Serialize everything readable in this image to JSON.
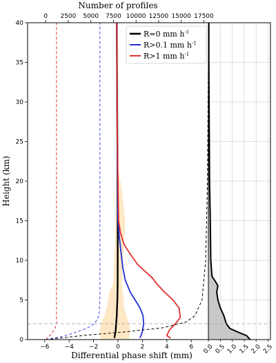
{
  "chart_data": [
    {
      "type": "line",
      "xlabel": "Differential phase shift (mm)",
      "ylabel": "Height (km)",
      "top_xlabel": "Number of profiles",
      "xlim": [
        -7.4,
        7.4
      ],
      "ylim": [
        0,
        40
      ],
      "x_ticks": [
        -6,
        -4,
        -2,
        0,
        2,
        4,
        6
      ],
      "y_ticks": [
        0,
        5,
        10,
        15,
        20,
        25,
        30,
        35,
        40
      ],
      "top_xlim": [
        -2000,
        18000
      ],
      "top_ticks": [
        0,
        2500,
        5000,
        7500,
        10000,
        12500,
        15000,
        17500
      ],
      "top_tick_labels": [
        "0",
        "2500",
        "5000",
        "7500",
        "10000",
        "12500",
        "15000",
        "17500"
      ],
      "reference_height_km": 2,
      "legend": {
        "placement": "top-right",
        "entries": [
          {
            "label": "R=0 mm h",
            "sup": "-1",
            "color": "#000000"
          },
          {
            "label": "R>0.1 mm h",
            "sup": "-1",
            "color": "#1f2fd6"
          },
          {
            "label": "R>1 mm h",
            "sup": "-1",
            "color": "#e03030"
          }
        ]
      },
      "spread_band": {
        "color": "#fde7c4",
        "points": [
          {
            "y": 0.0,
            "lo": -1.4,
            "hi": 0.9
          },
          {
            "y": 1.0,
            "lo": -1.5,
            "hi": 1.0
          },
          {
            "y": 2.0,
            "lo": -1.4,
            "hi": 0.9
          },
          {
            "y": 3.0,
            "lo": -1.1,
            "hi": 0.7
          },
          {
            "y": 4.0,
            "lo": -0.9,
            "hi": 0.5
          },
          {
            "y": 6.0,
            "lo": -0.7,
            "hi": 0.4
          },
          {
            "y": 7.0,
            "lo": -0.4,
            "hi": 0.3
          },
          {
            "y": 10.0,
            "lo": -0.3,
            "hi": 0.4
          },
          {
            "y": 15.0,
            "lo": -0.2,
            "hi": 0.6
          },
          {
            "y": 19.0,
            "lo": -0.2,
            "hi": 0.3
          },
          {
            "y": 21.0,
            "lo": -0.1,
            "hi": 0.1
          }
        ]
      },
      "series": [
        {
          "name": "R=0 mm h-1",
          "color": "#000000",
          "style": "solid",
          "axis": "bottom",
          "points": [
            [
              -0.3,
              0.2
            ],
            [
              -0.2,
              1.0
            ],
            [
              -0.15,
              2.0
            ],
            [
              -0.1,
              3.0
            ],
            [
              -0.08,
              4.0
            ],
            [
              -0.05,
              5.0
            ],
            [
              -0.03,
              7.0
            ],
            [
              -0.02,
              10.0
            ],
            [
              -0.02,
              15.0
            ],
            [
              -0.05,
              25.0
            ],
            [
              -0.1,
              40.0
            ]
          ]
        },
        {
          "name": "R>0.1 mm h-1",
          "color": "#1f2fd6",
          "style": "solid",
          "axis": "bottom",
          "points": [
            [
              1.8,
              0.2
            ],
            [
              2.0,
              1.0
            ],
            [
              2.1,
              2.0
            ],
            [
              2.05,
              3.0
            ],
            [
              1.8,
              4.0
            ],
            [
              1.4,
              5.0
            ],
            [
              1.0,
              6.0
            ],
            [
              0.6,
              7.5
            ],
            [
              0.4,
              9.0
            ],
            [
              0.25,
              11.0
            ],
            [
              0.1,
              13.0
            ],
            [
              0.02,
              14.5
            ],
            [
              -0.02,
              16.0
            ],
            [
              -0.05,
              25.0
            ],
            [
              -0.1,
              40.0
            ]
          ]
        },
        {
          "name": "R>1 mm h-1",
          "color": "#e03030",
          "style": "solid",
          "axis": "bottom",
          "points": [
            [
              4.3,
              0.2
            ],
            [
              4.0,
              0.5
            ],
            [
              4.2,
              1.2
            ],
            [
              4.7,
              2.0
            ],
            [
              5.1,
              2.8
            ],
            [
              5.0,
              4.0
            ],
            [
              4.5,
              5.0
            ],
            [
              3.8,
              6.0
            ],
            [
              3.2,
              7.0
            ],
            [
              2.8,
              7.8
            ],
            [
              2.3,
              8.5
            ],
            [
              1.6,
              9.5
            ],
            [
              1.0,
              10.8
            ],
            [
              0.5,
              12.0
            ],
            [
              0.2,
              13.5
            ],
            [
              0.05,
              15.0
            ],
            [
              -0.05,
              25.0
            ],
            [
              -0.1,
              40.0
            ]
          ]
        },
        {
          "name": "profiles R=0",
          "color": "#000000",
          "style": "dashed",
          "axis": "top",
          "points": [
            [
              0,
              0.0
            ],
            [
              4000,
              0.5
            ],
            [
              9000,
              1.0
            ],
            [
              13000,
              1.5
            ],
            [
              15500,
              2.2
            ],
            [
              16500,
              3.0
            ],
            [
              17300,
              5.0
            ],
            [
              17700,
              10.0
            ],
            [
              17900,
              20.0
            ],
            [
              18000,
              35.0
            ],
            [
              18100,
              40.0
            ]
          ]
        },
        {
          "name": "profiles R>0.1",
          "color": "#3a44e0",
          "style": "dashed",
          "axis": "top",
          "points": [
            [
              0,
              0.0
            ],
            [
              1500,
              0.3
            ],
            [
              3000,
              0.8
            ],
            [
              4500,
              1.4
            ],
            [
              5400,
              2.0
            ],
            [
              5900,
              3.0
            ],
            [
              6000,
              5.0
            ],
            [
              6000,
              40.0
            ]
          ]
        },
        {
          "name": "profiles R>1",
          "color": "#e03030",
          "style": "dashed",
          "axis": "top",
          "points": [
            [
              0,
              0.0
            ],
            [
              300,
              0.3
            ],
            [
              700,
              0.8
            ],
            [
              1050,
              1.5
            ],
            [
              1200,
              2.0
            ],
            [
              1200,
              40.0
            ]
          ]
        }
      ]
    },
    {
      "type": "area",
      "xlim": [
        0,
        2.6
      ],
      "ylim": [
        0,
        40
      ],
      "x_ticks": [
        0.0,
        0.5,
        1.0,
        1.5,
        2.0,
        2.5
      ],
      "x_tick_labels": [
        "0.0",
        "0.5",
        "1.0",
        "1.5",
        "2.0",
        "2.5"
      ],
      "grid": true,
      "fill_color": "#c8c8c8",
      "line_color": "#000000",
      "points": [
        [
          1.75,
          0.0
        ],
        [
          1.6,
          0.5
        ],
        [
          1.2,
          1.0
        ],
        [
          0.9,
          1.4
        ],
        [
          0.75,
          2.0
        ],
        [
          0.65,
          3.0
        ],
        [
          0.5,
          4.0
        ],
        [
          0.4,
          5.0
        ],
        [
          0.35,
          6.0
        ],
        [
          0.4,
          6.8
        ],
        [
          0.3,
          7.3
        ],
        [
          0.15,
          8.0
        ],
        [
          0.1,
          10.0
        ],
        [
          0.08,
          15.0
        ],
        [
          0.05,
          20.0
        ],
        [
          0.04,
          25.0
        ],
        [
          0.03,
          30.0
        ],
        [
          0.02,
          35.0
        ],
        [
          0.02,
          40.0
        ]
      ]
    }
  ]
}
